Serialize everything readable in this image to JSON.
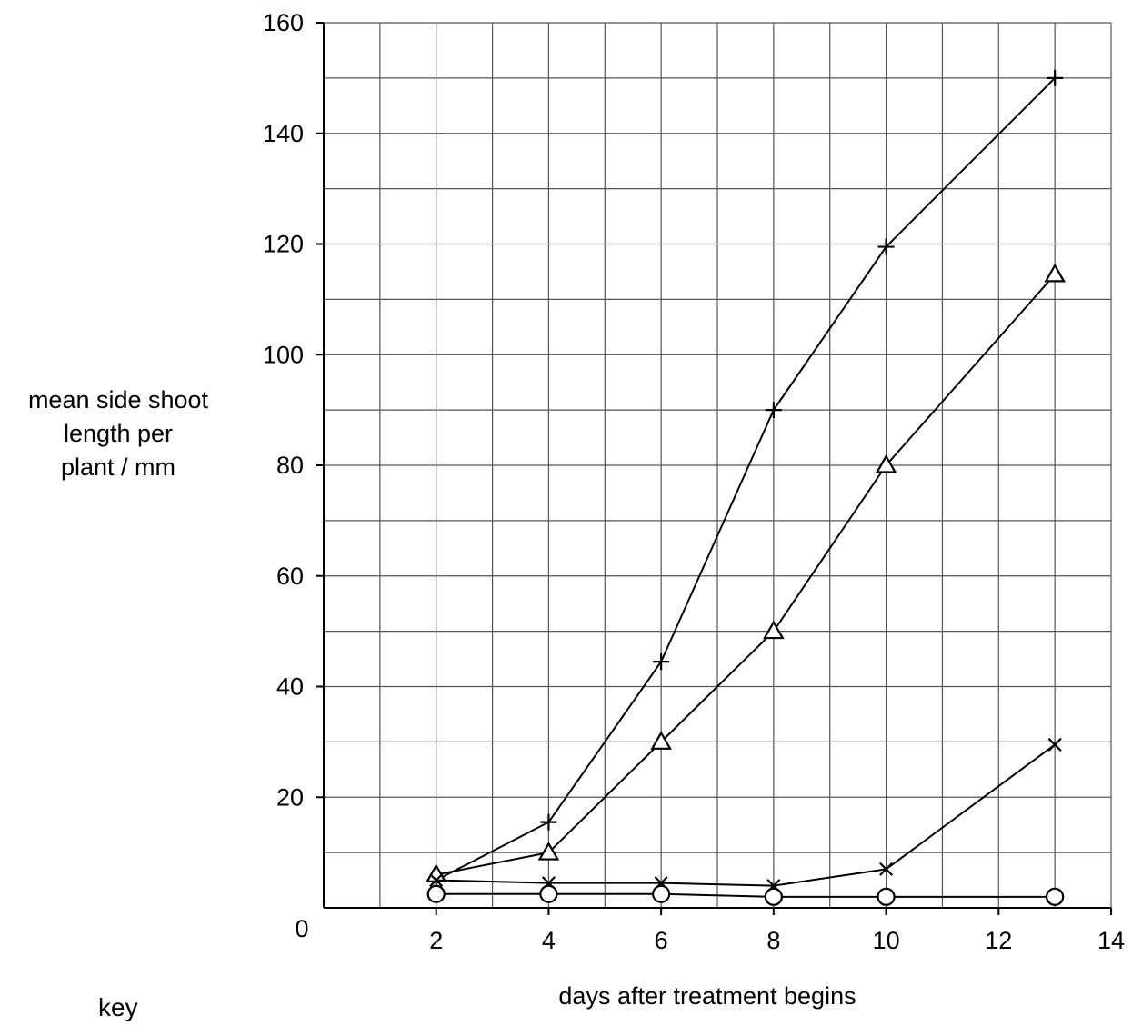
{
  "chart_data": {
    "type": "line",
    "title": "",
    "xlabel": "days after treatment begins",
    "ylabel_lines": [
      "mean side shoot",
      "length per",
      "plant / mm"
    ],
    "key_label": "key",
    "xlim": [
      0,
      14
    ],
    "ylim": [
      0,
      160
    ],
    "x_ticks": [
      {
        "value": 2,
        "label": "2"
      },
      {
        "value": 4,
        "label": "4"
      },
      {
        "value": 6,
        "label": "6"
      },
      {
        "value": 8,
        "label": "8"
      },
      {
        "value": 10,
        "label": "10"
      },
      {
        "value": 12,
        "label": "12"
      },
      {
        "value": 14,
        "label": "14"
      }
    ],
    "y_ticks": [
      {
        "value": 20,
        "label": "20"
      },
      {
        "value": 40,
        "label": "40"
      },
      {
        "value": 60,
        "label": "60"
      },
      {
        "value": 80,
        "label": "80"
      },
      {
        "value": 100,
        "label": "100"
      },
      {
        "value": 120,
        "label": "120"
      },
      {
        "value": 140,
        "label": "140"
      },
      {
        "value": 160,
        "label": "160"
      }
    ],
    "origin_label": "0",
    "grid": true,
    "x_minor_step": 1,
    "y_minor_step": 10,
    "series": [
      {
        "marker": "plus",
        "points": [
          [
            2,
            5
          ],
          [
            4,
            15.5
          ],
          [
            6,
            44.5
          ],
          [
            8,
            90
          ],
          [
            10,
            119.5
          ],
          [
            13,
            150
          ]
        ]
      },
      {
        "marker": "triangle",
        "points": [
          [
            2,
            6
          ],
          [
            4,
            10
          ],
          [
            6,
            30
          ],
          [
            8,
            50
          ],
          [
            10,
            80
          ],
          [
            13,
            114.5
          ]
        ]
      },
      {
        "marker": "cross",
        "points": [
          [
            2,
            5
          ],
          [
            4,
            4.5
          ],
          [
            6,
            4.5
          ],
          [
            8,
            4
          ],
          [
            10,
            7
          ],
          [
            13,
            29.5
          ]
        ]
      },
      {
        "marker": "circle",
        "points": [
          [
            2,
            2.5
          ],
          [
            4,
            2.5
          ],
          [
            6,
            2.5
          ],
          [
            8,
            2
          ],
          [
            10,
            2
          ],
          [
            13,
            2
          ]
        ]
      }
    ]
  }
}
